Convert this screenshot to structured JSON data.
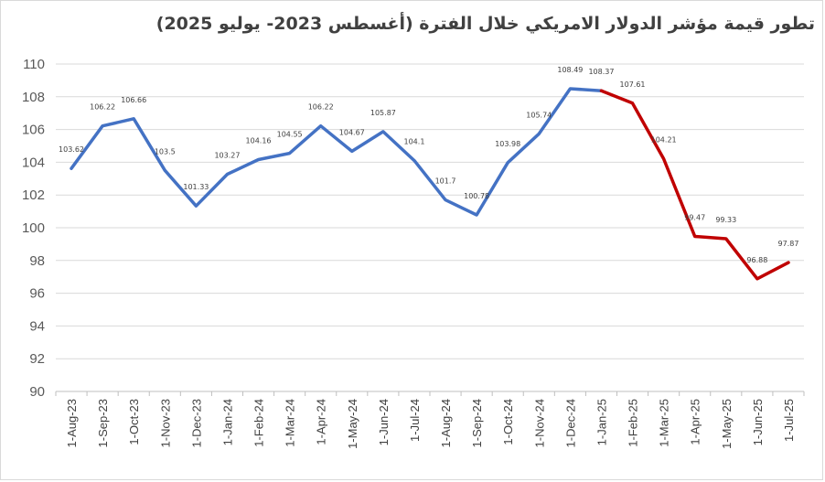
{
  "chart_data": {
    "type": "line",
    "title": "تطور قيمة مؤشر الدولار الامريكي خلال الفترة (أغسطس 2023- يوليو 2025)",
    "categories": [
      "1-Aug-23",
      "1-Sep-23",
      "1-Oct-23",
      "1-Nov-23",
      "1-Dec-23",
      "1-Jan-24",
      "1-Feb-24",
      "1-Mar-24",
      "1-Apr-24",
      "1-May-24",
      "1-Jun-24",
      "1-Jul-24",
      "1-Aug-24",
      "1-Sep-24",
      "1-Oct-24",
      "1-Nov-24",
      "1-Dec-24",
      "1-Jan-25",
      "1-Feb-25",
      "1-Mar-25",
      "1-Apr-25",
      "1-May-25",
      "1-Jun-25",
      "1-Jul-25"
    ],
    "values": [
      103.62,
      106.22,
      106.66,
      103.5,
      101.33,
      103.27,
      104.16,
      104.55,
      106.22,
      104.67,
      105.87,
      104.1,
      101.7,
      100.78,
      103.98,
      105.74,
      108.49,
      108.37,
      107.61,
      104.21,
      99.47,
      99.33,
      96.88,
      97.87
    ],
    "value_labels": [
      "103.62",
      "106.22",
      "106.66",
      "103.5",
      "101.33",
      "103.27",
      "104.16",
      "104.55",
      "106.22",
      "104.67",
      "105.87",
      "104.1",
      "101.7",
      "100.78",
      "103.98",
      "105.74",
      "108.49",
      "108.37",
      "107.61",
      "104.21",
      "99.47",
      "99.33",
      "96.88",
      "97.87"
    ],
    "segments": [
      {
        "from": "1-Aug-23",
        "to": "1-Jan-25",
        "color": "#4472c4"
      },
      {
        "from": "1-Jan-25",
        "to": "1-Jul-25",
        "color": "#c00000"
      }
    ],
    "ylim": [
      90,
      110
    ],
    "yticks": [
      90,
      92,
      94,
      96,
      98,
      100,
      102,
      104,
      106,
      108,
      110
    ],
    "grid": true,
    "legend": "none",
    "xlabel": "",
    "ylabel": ""
  }
}
